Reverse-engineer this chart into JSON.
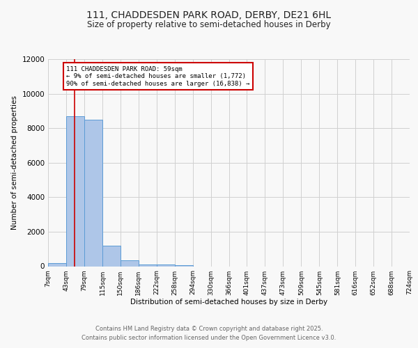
{
  "title_line1": "111, CHADDESDEN PARK ROAD, DERBY, DE21 6HL",
  "title_line2": "Size of property relative to semi-detached houses in Derby",
  "xlabel": "Distribution of semi-detached houses by size in Derby",
  "ylabel": "Number of semi-detached properties",
  "footer_line1": "Contains HM Land Registry data © Crown copyright and database right 2025.",
  "footer_line2": "Contains public sector information licensed under the Open Government Licence v3.0.",
  "annotation_line1": "111 CHADDESDEN PARK ROAD: 59sqm",
  "annotation_line2": "← 9% of semi-detached houses are smaller (1,772)",
  "annotation_line3": "90% of semi-detached houses are larger (16,838) →",
  "property_size": 59,
  "bar_edges": [
    7,
    43,
    79,
    115,
    150,
    186,
    222,
    258,
    294,
    330,
    366,
    401,
    437,
    473,
    509,
    545,
    581,
    616,
    652,
    688,
    724
  ],
  "bar_heights": [
    200,
    8700,
    8500,
    1200,
    350,
    100,
    100,
    50,
    0,
    0,
    0,
    0,
    0,
    0,
    0,
    0,
    0,
    0,
    0,
    0
  ],
  "bar_color": "#aec6e8",
  "bar_edge_color": "#5b9bd5",
  "red_line_color": "#cc0000",
  "annotation_box_color": "#cc0000",
  "grid_color": "#d0d0d0",
  "background_color": "#f8f8f8",
  "ylim": [
    0,
    12000
  ],
  "yticks": [
    0,
    2000,
    4000,
    6000,
    8000,
    10000,
    12000
  ]
}
